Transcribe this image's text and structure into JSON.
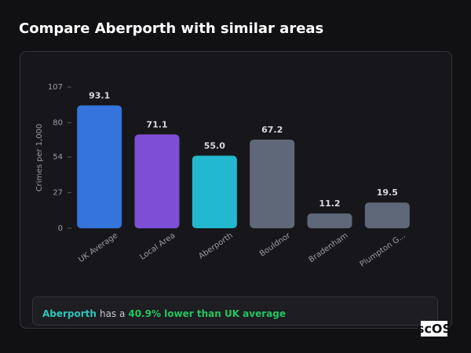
{
  "header": {
    "title": "Compare Aberporth with similar areas"
  },
  "chart_data": {
    "type": "bar",
    "y_label": "Crimes per 1,000",
    "categories": [
      "UK Average",
      "Local Area",
      "Aberporth",
      "Bouldnor",
      "Bradenham",
      "Plumpton G..."
    ],
    "values": [
      93.1,
      71.1,
      55.0,
      67.2,
      11.2,
      19.5
    ],
    "value_labels": [
      "93.1",
      "71.1",
      "55.0",
      "67.2",
      "11.2",
      "19.5"
    ],
    "colors": [
      "#3474db",
      "#7c4fd6",
      "#22b8cf",
      "#5f6878",
      "#5f6878",
      "#5f6878"
    ],
    "ylim": [
      0,
      107
    ],
    "yticks": [
      0,
      27,
      54,
      80,
      107
    ],
    "grid": false
  },
  "summary": {
    "area": "Aberporth",
    "text": "has a",
    "highlight": "40.9% lower than UK average"
  },
  "logo": "scOS"
}
